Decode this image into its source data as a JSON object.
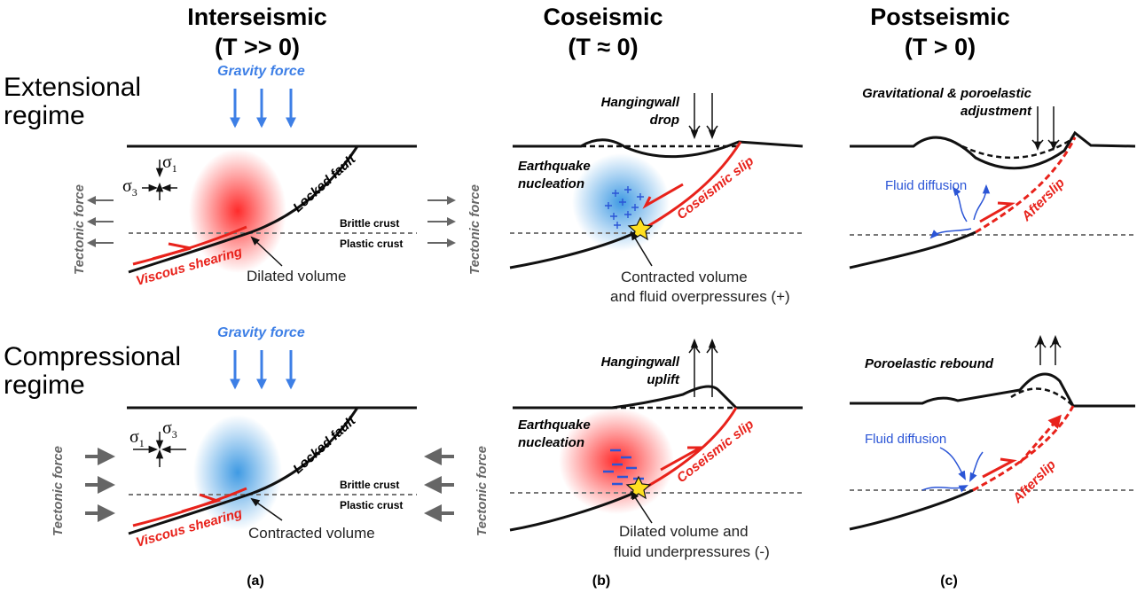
{
  "headers": [
    {
      "title": "Interseismic",
      "subtitle": "(T >> 0)"
    },
    {
      "title": "Coseismic",
      "subtitle": "(T ≈ 0)"
    },
    {
      "title": "Postseismic",
      "subtitle": "(T > 0)"
    }
  ],
  "row_labels": [
    [
      "Extensional",
      "regime"
    ],
    [
      "Compressional",
      "regime"
    ]
  ],
  "interseismic_extensional": {
    "gravity": "Gravity force",
    "sigma1": {
      "symbol": "σ",
      "index": "1"
    },
    "sigma3": {
      "symbol": "σ",
      "index": "3"
    },
    "tectonic_left": "Tectonic force",
    "tectonic_right": "Tectonic force",
    "locked_fault": "Locked fault",
    "brittle": "Brittle crust",
    "plastic": "Plastic crust",
    "shear": "Viscous shearing",
    "volume": "Dilated volume"
  },
  "interseismic_compressional": {
    "gravity": "Gravity force",
    "sigma1": {
      "symbol": "σ",
      "index": "1"
    },
    "sigma3": {
      "symbol": "σ",
      "index": "3"
    },
    "tectonic_left": "Tectonic force",
    "tectonic_right": "Tectonic force",
    "locked_fault": "Locked fault",
    "brittle": "Brittle crust",
    "plastic": "Plastic crust",
    "shear": "Viscous shearing",
    "volume": "Contracted volume"
  },
  "coseismic_extensional": {
    "motion": [
      "Hangingwall",
      "drop"
    ],
    "nucleation": [
      "Earthquake",
      "nucleation"
    ],
    "slip": "Coseismic slip",
    "volume": [
      "Contracted volume",
      "and fluid overpressures (+)"
    ]
  },
  "coseismic_compressional": {
    "motion": [
      "Hangingwall",
      "uplift"
    ],
    "nucleation": [
      "Earthquake",
      "nucleation"
    ],
    "slip": "Coseismic slip",
    "volume": [
      "Dilated volume and",
      "fluid underpressures (-)"
    ]
  },
  "postseismic_extensional": {
    "process": [
      "Gravitational & poroelastic",
      "adjustment"
    ],
    "diffusion": "Fluid diffusion",
    "slip": "Afterslip"
  },
  "postseismic_compressional": {
    "process": [
      "Poroelastic rebound"
    ],
    "diffusion": "Fluid diffusion",
    "slip": "Afterslip"
  },
  "captions": [
    "(a)",
    "(b)",
    "(c)"
  ]
}
